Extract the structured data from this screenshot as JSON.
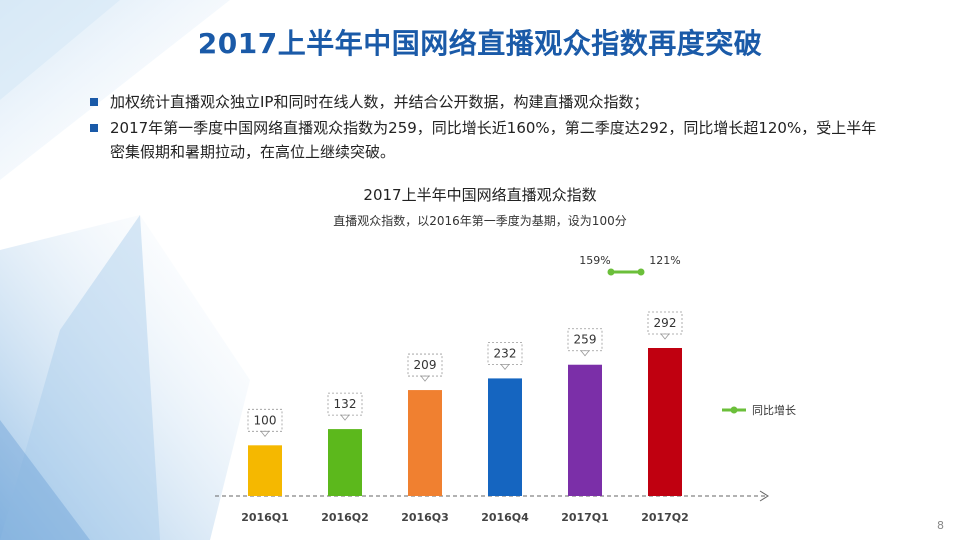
{
  "title": "2017上半年中国网络直播观众指数再度突破",
  "bullets": [
    "加权统计直播观众独立IP和同时在线人数，并结合公开数据，构建直播观众指数；",
    "2017年第一季度中国网络直播观众指数为259，同比增长近160%，第二季度达292，同比增长超120%，受上半年密集假期和暑期拉动，在高位上继续突破。"
  ],
  "page_number": "8",
  "chart_data": {
    "type": "bar",
    "title": "2017上半年中国网络直播观众指数",
    "subtitle": "直播观众指数，以2016年第一季度为基期，设为100分",
    "categories": [
      "2016Q1",
      "2016Q2",
      "2016Q3",
      "2016Q4",
      "2017Q1",
      "2017Q2"
    ],
    "values": [
      100,
      132,
      209,
      232,
      259,
      292
    ],
    "bar_colors": [
      "#f5b800",
      "#5cb81c",
      "#f08030",
      "#1565c0",
      "#7b2fa8",
      "#c00010"
    ],
    "ylim": [
      0,
      300
    ],
    "yoy_growth": {
      "name": "同比增长",
      "categories": [
        "2017Q1",
        "2017Q2"
      ],
      "labels": [
        "159%",
        "121%"
      ],
      "color": "#6bbf3a"
    },
    "legend_position": "right"
  }
}
